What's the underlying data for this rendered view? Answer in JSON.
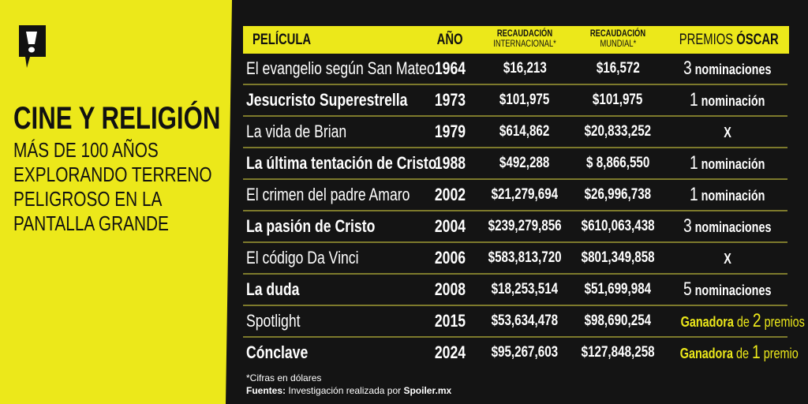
{
  "brand_color": "#ece81a",
  "left": {
    "logo": "exclamation-speech-bubble-logo",
    "title": "CINE Y RELIGIÓN",
    "subtitle_lines": [
      "MÁS DE 100 AÑOS",
      "EXPLORANDO TERRENO",
      "PELIGROSO EN LA",
      "PANTALLA GRANDE"
    ]
  },
  "table": {
    "headers": {
      "film": "PELÍCULA",
      "year": "AÑO",
      "intl_1": "RECAUDACIÓN",
      "intl_2": "INTERNACIONAL*",
      "world_1": "RECAUDACIÓN",
      "world_2": "MUNDIAL*",
      "awards_1": "PREMIOS",
      "awards_2": "ÓSCAR"
    },
    "rows": [
      {
        "film": "El evangelio según San Mateo",
        "year": "1964",
        "intl": "$16,213",
        "world": "$16,572",
        "a_num": "3",
        "a_text": "nominaciones"
      },
      {
        "film": "Jesucristo Superestrella",
        "year": "1973",
        "intl": "$101,975",
        "world": "$101,975",
        "a_num": "1",
        "a_text": "nominación"
      },
      {
        "film": "La vida de Brian",
        "year": "1979",
        "intl": "$614,862",
        "world": "$20,833,252",
        "a_num": "",
        "a_text": "X"
      },
      {
        "film": "La última tentación de Cristo",
        "year": "1988",
        "intl": "$492,288",
        "world": "$ 8,866,550",
        "a_num": "1",
        "a_text": "nominación"
      },
      {
        "film": "El crimen del padre Amaro",
        "year": "2002",
        "intl": "$21,279,694",
        "world": "$26,996,738",
        "a_num": "1",
        "a_text": "nominación"
      },
      {
        "film": "La pasión de Cristo",
        "year": "2004",
        "intl": "$239,279,856",
        "world": "$610,063,438",
        "a_num": "3",
        "a_text": "nominaciones"
      },
      {
        "film": "El código Da Vinci",
        "year": "2006",
        "intl": "$583,813,720",
        "world": "$801,349,858",
        "a_num": "",
        "a_text": "X"
      },
      {
        "film": "La duda",
        "year": "2008",
        "intl": "$18,253,514",
        "world": "$51,699,984",
        "a_num": "5",
        "a_text": "nominaciones"
      },
      {
        "film": "Spotlight",
        "year": "2015",
        "intl": "$53,634,478",
        "world": "$98,690,254",
        "win": "Ganadora",
        "de": "de",
        "a_num": "2",
        "a_text": "premios"
      },
      {
        "film": "Cónclave",
        "year": "2024",
        "intl": "$95,267,603",
        "world": "$127,848,258",
        "win": "Ganadora",
        "de": "de",
        "a_num": "1",
        "a_text": "premio"
      }
    ]
  },
  "footer": {
    "note": "*Cifras en dólares",
    "sources_label": "Fuentes:",
    "sources_text": "Investigación realizada por",
    "sources_site": "Spoiler.mx"
  }
}
